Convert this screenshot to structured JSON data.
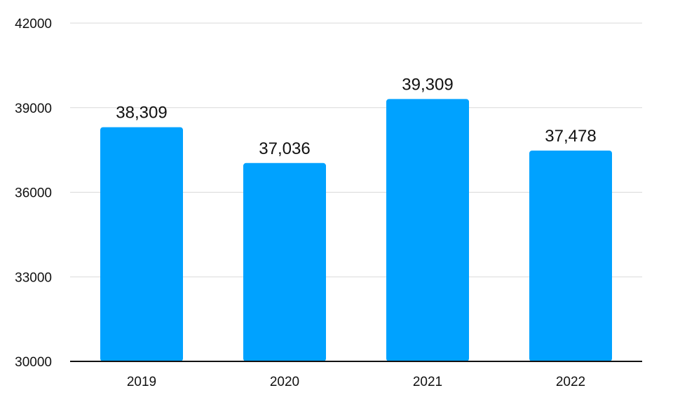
{
  "chart_data": {
    "type": "bar",
    "categories": [
      "2019",
      "2020",
      "2021",
      "2022"
    ],
    "values": [
      38309,
      37036,
      39309,
      37478
    ],
    "data_labels": [
      "38,309",
      "37,036",
      "39,309",
      "37,478"
    ],
    "ylim": [
      30000,
      42000
    ],
    "yticks": [
      30000,
      33000,
      36000,
      39000,
      42000
    ],
    "ytick_labels": [
      "30000",
      "33000",
      "36000",
      "39000",
      "42000"
    ],
    "grid": true,
    "legend": "none",
    "bar_color": "#00A2FF",
    "title": "",
    "xlabel": "",
    "ylabel": ""
  }
}
